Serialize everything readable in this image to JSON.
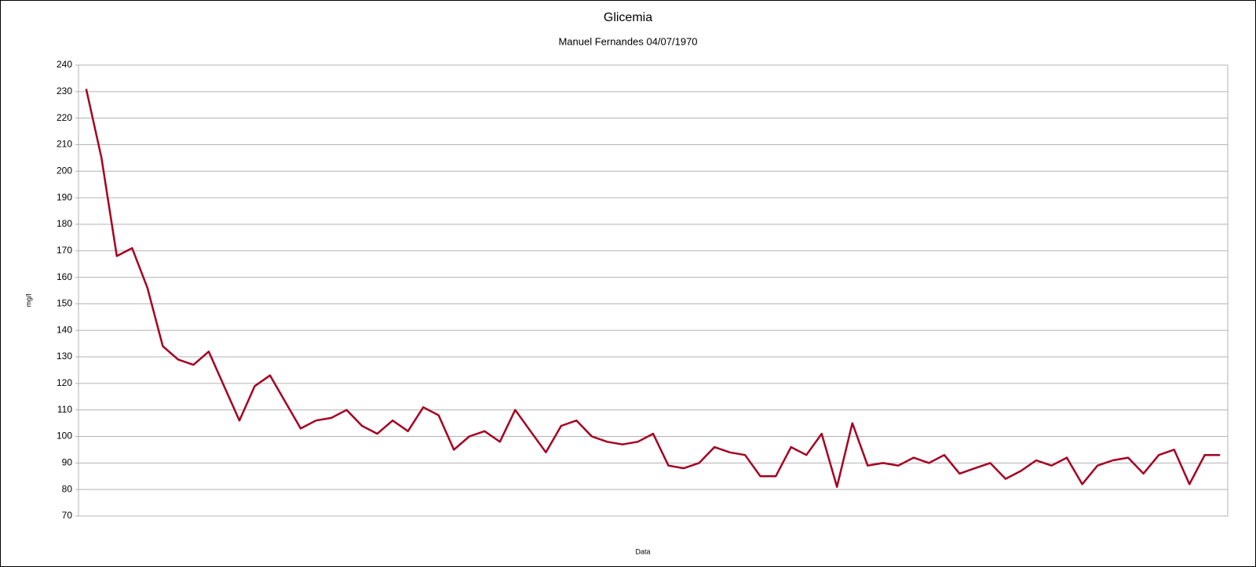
{
  "chart_data": {
    "type": "line",
    "title": "Glicemia",
    "subtitle": "Manuel Fernandes 04/07/1970",
    "x_label": "Data",
    "y_label": "mg/l",
    "series": [
      {
        "name": "Glicemia",
        "color": "#a50021",
        "values": [
          231,
          205,
          168,
          171,
          156,
          134,
          129,
          127,
          132,
          119,
          106,
          119,
          123,
          113,
          103,
          106,
          107,
          110,
          104,
          101,
          106,
          102,
          111,
          108,
          95,
          100,
          102,
          98,
          110,
          102,
          94,
          104,
          106,
          100,
          98,
          97,
          98,
          101,
          89,
          88,
          90,
          96,
          94,
          93,
          85,
          85,
          96,
          93,
          101,
          81,
          105,
          89,
          90,
          89,
          92,
          90,
          93,
          86,
          88,
          90,
          84,
          87,
          91,
          89,
          92,
          82,
          89,
          91,
          92,
          86,
          93,
          95,
          82,
          93,
          93
        ]
      }
    ],
    "ylim": [
      70,
      240
    ],
    "yticks": [
      70,
      80,
      90,
      100,
      110,
      120,
      130,
      140,
      150,
      160,
      170,
      180,
      190,
      200,
      210,
      220,
      230,
      240
    ],
    "grid": true
  }
}
